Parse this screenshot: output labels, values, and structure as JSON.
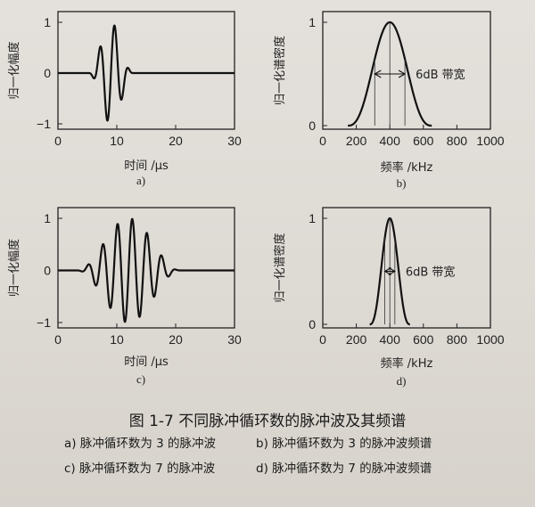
{
  "figure": {
    "caption": "图 1-7    不同脉冲循环数的脉冲波及其频谱",
    "legend": [
      "a)  脉冲循环数为 3 的脉冲波",
      "b)  脉冲循环数为 3 的脉冲波频谱",
      "c)  脉冲循环数为 7 的脉冲波",
      "d)  脉冲循环数为 7 的脉冲波频谱"
    ]
  },
  "chart_data": [
    {
      "id": "a",
      "type": "line",
      "sublabel": "a)",
      "xlabel": "时间 /μs",
      "ylabel": "归一化幅度",
      "xlim": [
        0,
        30
      ],
      "ylim": [
        -1,
        1
      ],
      "xticks": [
        0,
        10,
        20,
        30
      ],
      "yticks": [
        -1,
        0,
        1
      ],
      "signal": {
        "kind": "tone-burst",
        "cycles": 3,
        "center": 9,
        "frequency_mhz": 0.4,
        "amplitude": 1
      }
    },
    {
      "id": "b",
      "type": "line",
      "sublabel": "b)",
      "xlabel": "频率 /kHz",
      "ylabel": "归一化谱密度",
      "xlim": [
        0,
        1000
      ],
      "ylim": [
        0,
        1
      ],
      "xticks": [
        0,
        200,
        400,
        600,
        800,
        1000
      ],
      "yticks": [
        0,
        1
      ],
      "annotation": "6dB 带宽",
      "signal": {
        "kind": "spectrum",
        "center": 400,
        "start": 150,
        "end": 650,
        "band_low": 310,
        "band_high": 490
      }
    },
    {
      "id": "c",
      "type": "line",
      "sublabel": "c)",
      "xlabel": "时间 /μs",
      "ylabel": "归一化幅度",
      "xlim": [
        0,
        30
      ],
      "ylim": [
        -1,
        1
      ],
      "xticks": [
        0,
        10,
        20,
        30
      ],
      "yticks": [
        -1,
        0,
        1
      ],
      "signal": {
        "kind": "tone-burst",
        "cycles": 7,
        "center": 12,
        "frequency_mhz": 0.4,
        "amplitude": 1
      }
    },
    {
      "id": "d",
      "type": "line",
      "sublabel": "d)",
      "xlabel": "频率 /kHz",
      "ylabel": "归一化谱密度",
      "xlim": [
        0,
        1000
      ],
      "ylim": [
        0,
        1
      ],
      "xticks": [
        0,
        200,
        400,
        600,
        800,
        1000
      ],
      "yticks": [
        0,
        1
      ],
      "annotation": "6dB 带宽",
      "signal": {
        "kind": "spectrum",
        "center": 400,
        "start": 280,
        "end": 520,
        "band_low": 370,
        "band_high": 430
      }
    }
  ]
}
